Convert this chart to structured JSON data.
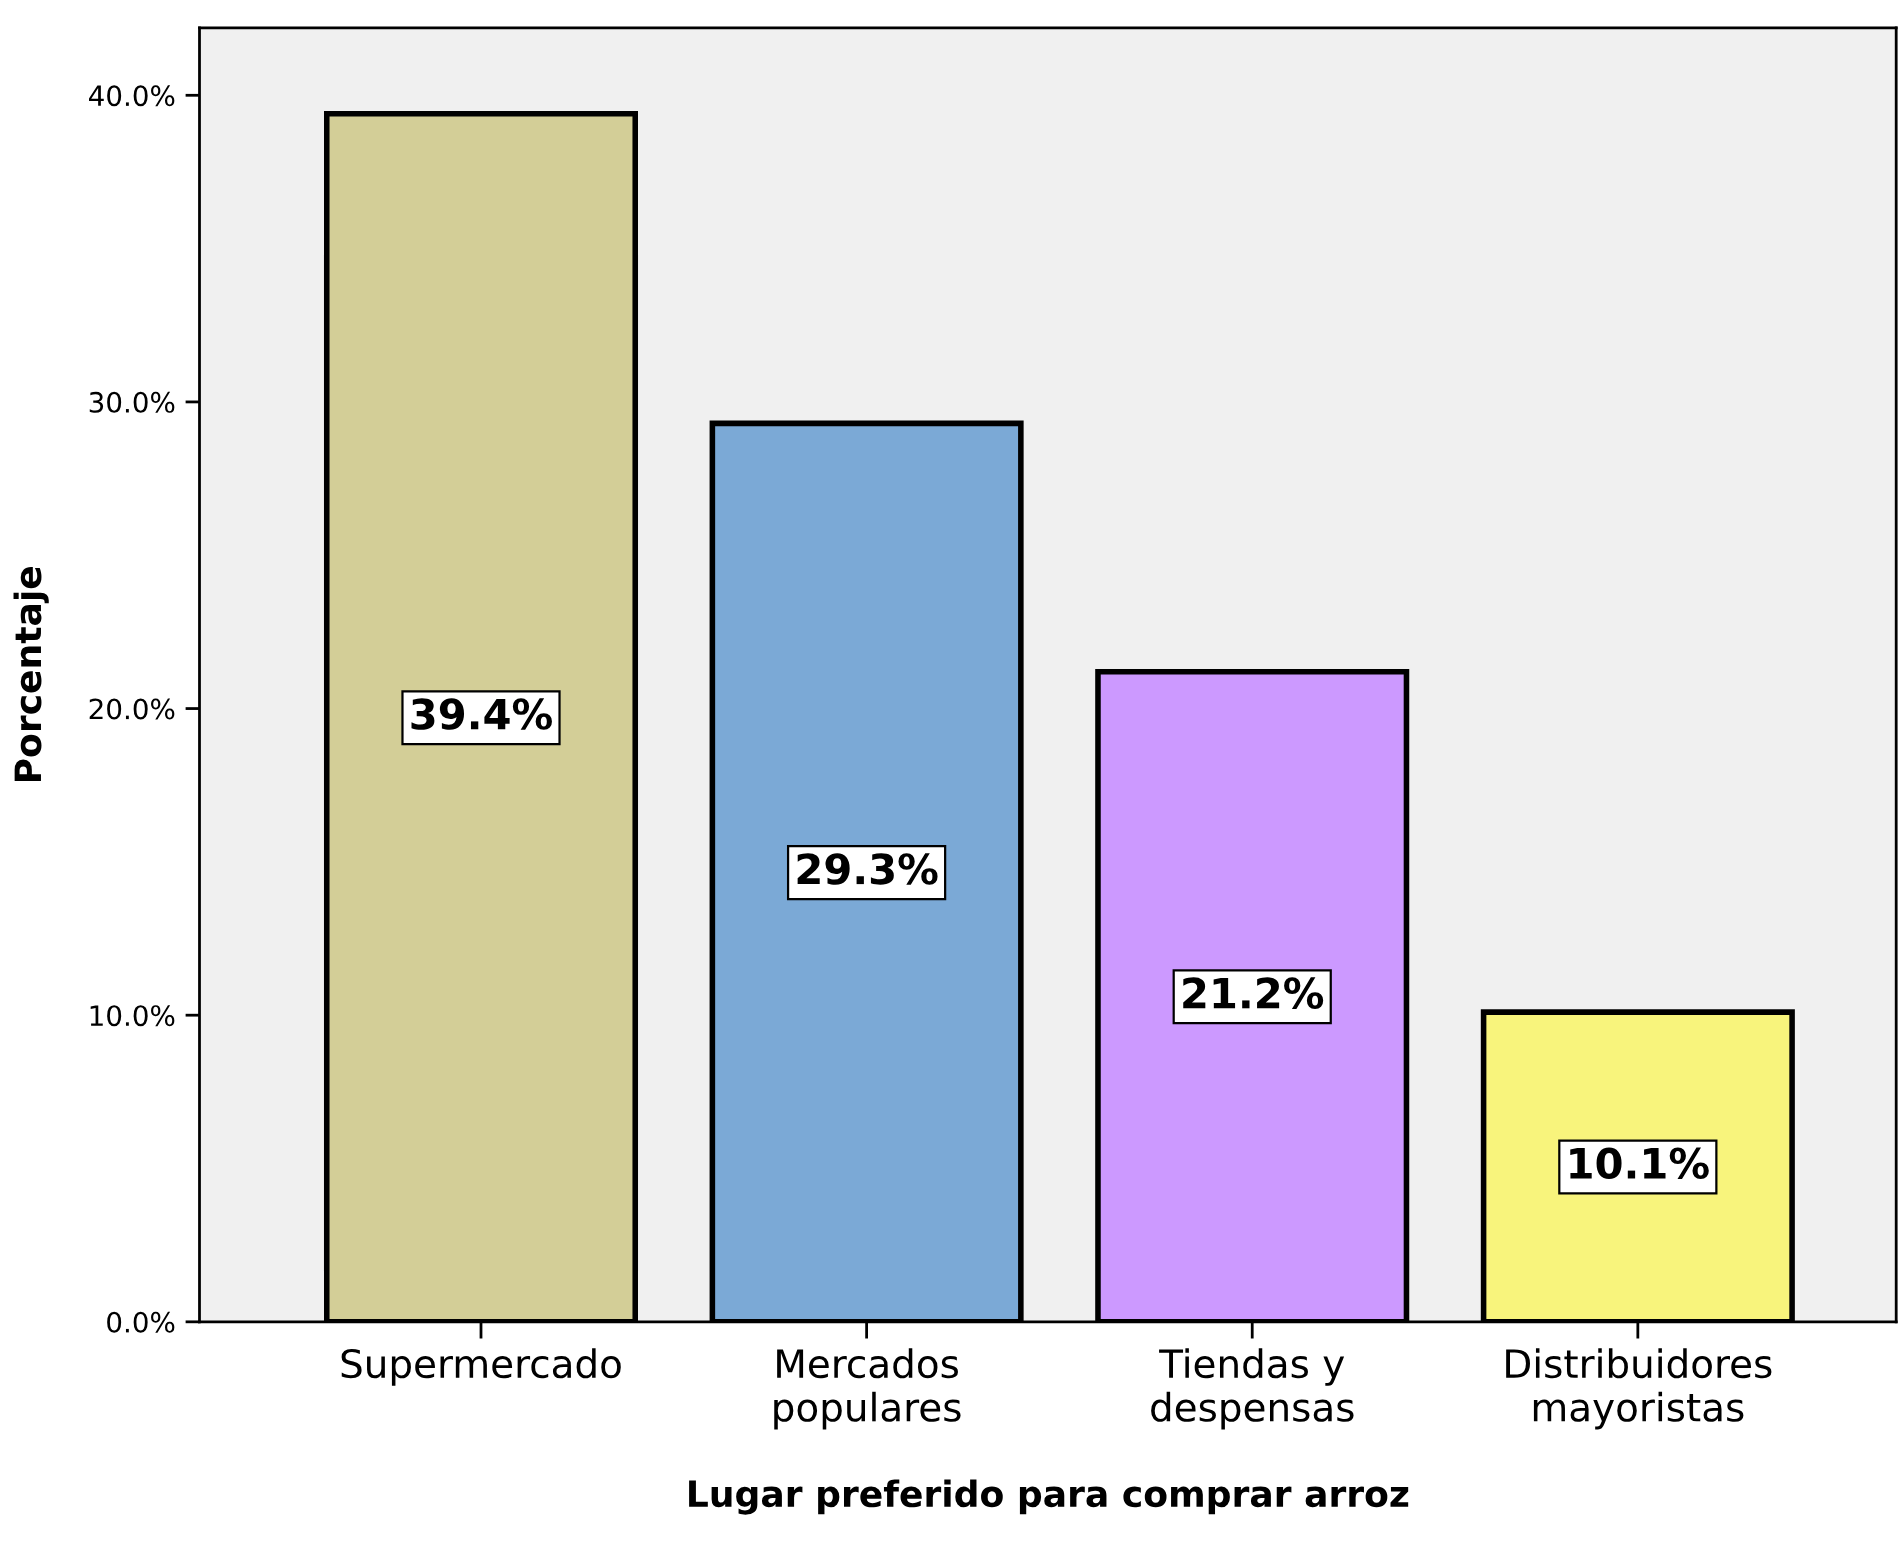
{
  "chart_data": {
    "type": "bar",
    "xlabel": "Lugar preferido para comprar arroz",
    "ylabel": "Porcentaje",
    "categories": [
      "Supermercado",
      "Mercados\npopulares",
      "Tiendas y\ndespensas",
      "Distribuidores\nmayoristas"
    ],
    "values": [
      39.4,
      29.3,
      21.2,
      10.1
    ],
    "colors": [
      "#d3ce97",
      "#7ba9d6",
      "#cc99ff",
      "#f8f47c"
    ],
    "value_labels": [
      "39.4%",
      "29.3%",
      "21.2%",
      "10.1%"
    ],
    "ylim": [
      0,
      42.2
    ],
    "yticks": [
      {
        "value": 0,
        "label": "0.0%"
      },
      {
        "value": 10,
        "label": "10.0%"
      },
      {
        "value": 20,
        "label": "20.0%"
      },
      {
        "value": 30,
        "label": "30.0%"
      },
      {
        "value": 40,
        "label": "40.0%"
      }
    ],
    "grid": false
  }
}
